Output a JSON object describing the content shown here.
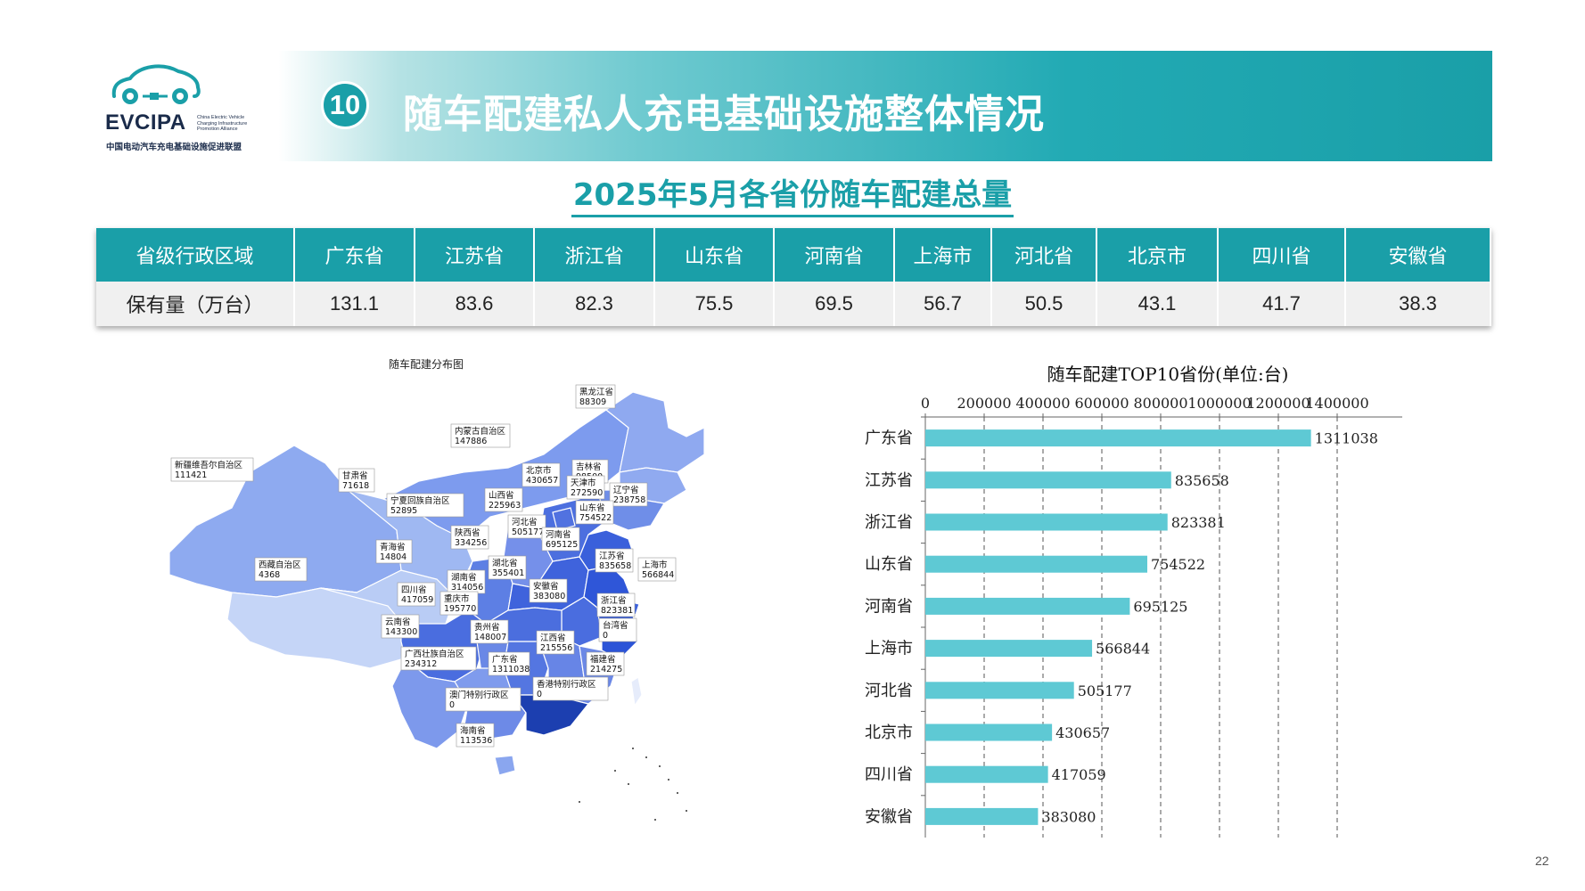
{
  "header": {
    "logo_text": "EVCIPA",
    "logo_subtitle": "China Electric Vehicle Charging Infrastructure Promotion Alliance",
    "logo_cn": "中国电动汽车充电基础设施促进联盟",
    "section_number": "10",
    "title": "随车配建私人充电基础设施整体情况"
  },
  "subtitle": "2025年5月各省份随车配建总量",
  "table": {
    "header_label": "省级行政区域",
    "row_label": "保有量（万台）",
    "columns": [
      "广东省",
      "江苏省",
      "浙江省",
      "山东省",
      "河南省",
      "上海市",
      "河北省",
      "北京市",
      "四川省",
      "安徽省"
    ],
    "values": [
      "131.1",
      "83.6",
      "82.3",
      "75.5",
      "69.5",
      "56.7",
      "50.5",
      "43.1",
      "41.7",
      "38.3"
    ]
  },
  "map": {
    "title": "随车配建分布图",
    "labels": [
      {
        "name": "黑龙江省",
        "value": "88309"
      },
      {
        "name": "内蒙古自治区",
        "value": "147886"
      },
      {
        "name": "吉林省",
        "value": "98500"
      },
      {
        "name": "新疆维吾尔自治区",
        "value": "111421"
      },
      {
        "name": "甘肃省",
        "value": "71618"
      },
      {
        "name": "北京市",
        "value": "430657"
      },
      {
        "name": "天津市",
        "value": "272590"
      },
      {
        "name": "辽宁省",
        "value": "238758"
      },
      {
        "name": "宁夏回族自治区",
        "value": "52895"
      },
      {
        "name": "山西省",
        "value": "225963"
      },
      {
        "name": "山东省",
        "value": "754522"
      },
      {
        "name": "河北省",
        "value": "505177"
      },
      {
        "name": "陕西省",
        "value": "334256"
      },
      {
        "name": "河南省",
        "value": "695125"
      },
      {
        "name": "江苏省",
        "value": "835658"
      },
      {
        "name": "青海省",
        "value": "14804"
      },
      {
        "name": "上海市",
        "value": "566844"
      },
      {
        "name": "西藏自治区",
        "value": "4368"
      },
      {
        "name": "湖北省",
        "value": "355401"
      },
      {
        "name": "湖南省",
        "value": "314056"
      },
      {
        "name": "四川省",
        "value": "417059"
      },
      {
        "name": "重庆市",
        "value": "195770"
      },
      {
        "name": "安徽省",
        "value": "383080"
      },
      {
        "name": "浙江省",
        "value": "823381"
      },
      {
        "name": "云南省",
        "value": "143300"
      },
      {
        "name": "贵州省",
        "value": "148007"
      },
      {
        "name": "台湾省",
        "value": "0"
      },
      {
        "name": "江西省",
        "value": "215556"
      },
      {
        "name": "广西壮族自治区",
        "value": "234312"
      },
      {
        "name": "广东省",
        "value": "1311038"
      },
      {
        "name": "福建省",
        "value": "214275"
      },
      {
        "name": "香港特别行政区",
        "value": "0"
      },
      {
        "name": "澳门特别行政区",
        "value": "0"
      },
      {
        "name": "海南省",
        "value": "113536"
      }
    ]
  },
  "chart_data": {
    "type": "bar",
    "orientation": "horizontal",
    "title": "随车配建TOP10省份(单位:台)",
    "categories": [
      "广东省",
      "江苏省",
      "浙江省",
      "山东省",
      "河南省",
      "上海市",
      "河北省",
      "北京市",
      "四川省",
      "安徽省"
    ],
    "values": [
      1311038,
      835658,
      823381,
      754522,
      695125,
      566844,
      505177,
      430657,
      417059,
      383080
    ],
    "xlim": [
      0,
      1500000
    ],
    "xticks": [
      0,
      200000,
      400000,
      600000,
      800000,
      1000000,
      1200000,
      1400000
    ],
    "xaxis_position": "top",
    "grid": "vertical-dashed",
    "bar_color": "#5ec9d4"
  },
  "page_number": "22",
  "colors": {
    "accent": "#1a9fa8",
    "table_row_bg": "#f0f0f0"
  }
}
